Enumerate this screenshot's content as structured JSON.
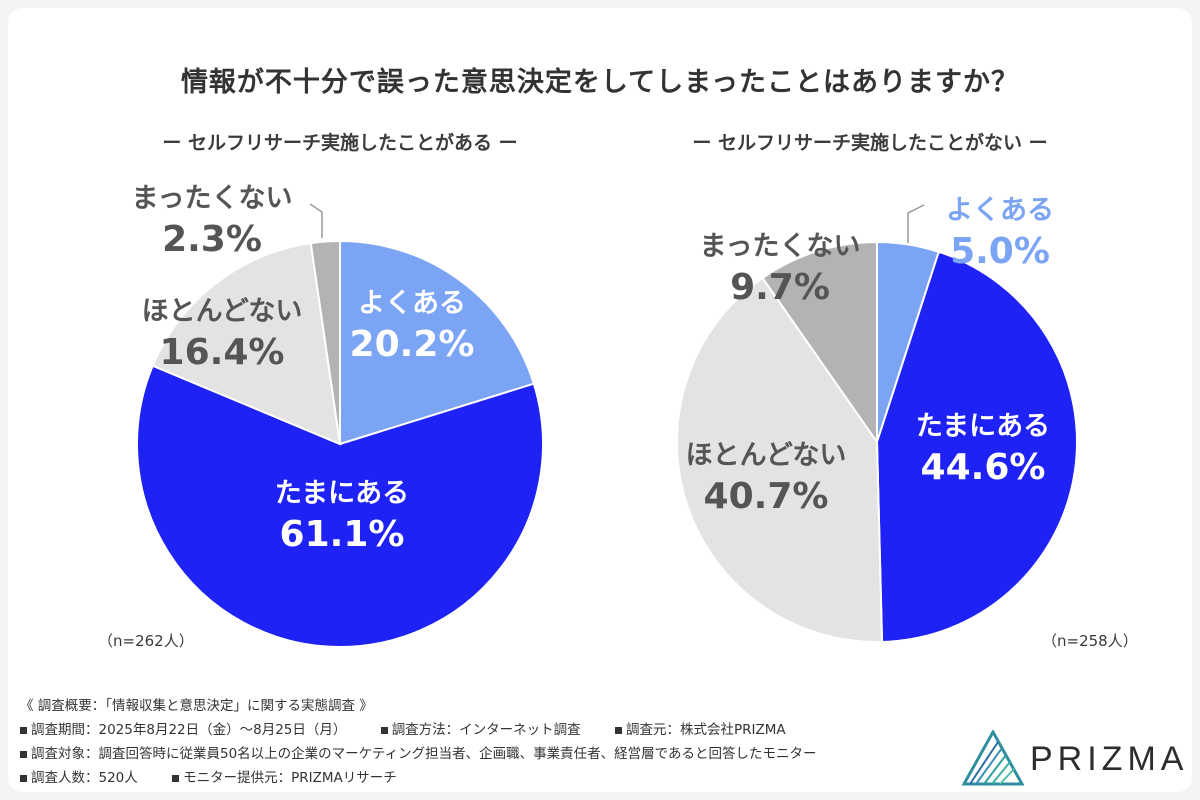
{
  "title": "情報が不十分で誤った意思決定をしてしまったことはありますか？",
  "colors": {
    "yoku_aru": "#7ba4f4",
    "tama_ni_aru": "#1e22f5",
    "hotondo_nai": "#e3e3e4",
    "mattaku_nai": "#b3b3b5",
    "light_text": "#7ba4f4",
    "dark_text": "#555555"
  },
  "chart_data": [
    {
      "type": "pie",
      "title": "ー セルフリサーチ実施したことがある ー",
      "n_label": "（n=262人）",
      "categories": [
        "よくある",
        "たまにある",
        "ほとんどない",
        "まったくない"
      ],
      "values": [
        20.2,
        61.1,
        16.4,
        2.3
      ],
      "value_labels": [
        "20.2%",
        "61.1%",
        "16.4%",
        "2.3%"
      ],
      "start": "12 o'clock, clockwise"
    },
    {
      "type": "pie",
      "title": "ー セルフリサーチ実施したことがない ー",
      "n_label": "（n=258人）",
      "categories": [
        "よくある",
        "たまにある",
        "ほとんどない",
        "まったくない"
      ],
      "values": [
        5.0,
        44.6,
        40.7,
        9.7
      ],
      "value_labels": [
        "5.0%",
        "44.6%",
        "40.7%",
        "9.7%"
      ],
      "start": "12 o'clock, clockwise"
    }
  ],
  "footer": {
    "heading": "《 調査概要：「情報収集と意思決定」に関する実態調査 》",
    "period": "調査期間：2025年8月22日（金）〜8月25日（月）",
    "method": "調査方法：インターネット調査",
    "source": "調査元：株式会社PRIZMA",
    "target": "調査対象：調査回答時に従業員50名以上の企業のマーケティング担当者、企画職、事業責任者、経営層であると回答したモニター",
    "count": "調査人数：520人",
    "provider": "モニター提供元：PRIZMAリサーチ"
  },
  "logo": {
    "text": "PRIZMA"
  }
}
